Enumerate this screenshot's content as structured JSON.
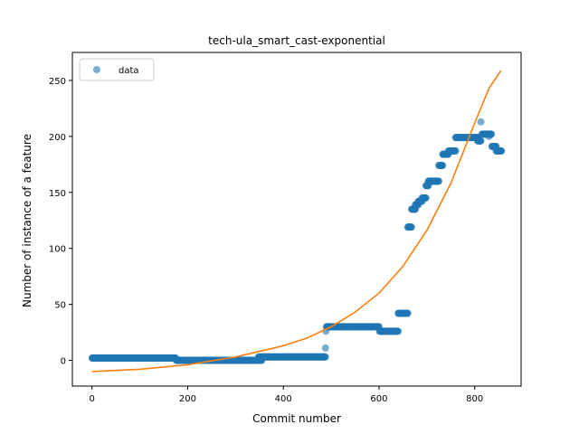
{
  "chart_data": {
    "type": "scatter",
    "title": "tech-ula_smart_cast-exponential",
    "xlabel": "Commit number",
    "ylabel": "Number of instance of a feature",
    "xlim": [
      -41,
      897
    ],
    "ylim": [
      -23,
      275
    ],
    "xticks": [
      0,
      200,
      400,
      600,
      800
    ],
    "yticks": [
      0,
      50,
      100,
      150,
      200,
      250
    ],
    "grid": false,
    "legend": {
      "placement": "top-left",
      "entries": [
        "data"
      ]
    },
    "colors": {
      "data": "#1f77b4",
      "fit": "#ff7f0e"
    },
    "series": [
      {
        "name": "data",
        "kind": "scatter",
        "segments": [
          {
            "x_start": 0,
            "x_end": 175,
            "y": 2
          },
          {
            "x_start": 176,
            "x_end": 355,
            "y": 0
          },
          {
            "x_start": 348,
            "x_end": 488,
            "y": 3
          },
          {
            "x_start": 490,
            "x_end": 600,
            "y": 30
          },
          {
            "x_start": 601,
            "x_end": 640,
            "y": 26
          },
          {
            "x_start": 640,
            "x_end": 660,
            "y": 42
          },
          {
            "x_start": 660,
            "x_end": 668,
            "y": 119
          },
          {
            "x_start": 668,
            "x_end": 676,
            "y": 135
          },
          {
            "x_start": 676,
            "x_end": 682,
            "y": 139
          },
          {
            "x_start": 682,
            "x_end": 690,
            "y": 142
          },
          {
            "x_start": 690,
            "x_end": 698,
            "y": 145
          },
          {
            "x_start": 698,
            "x_end": 703,
            "y": 156
          },
          {
            "x_start": 703,
            "x_end": 725,
            "y": 160
          },
          {
            "x_start": 725,
            "x_end": 733,
            "y": 174
          },
          {
            "x_start": 733,
            "x_end": 745,
            "y": 184
          },
          {
            "x_start": 745,
            "x_end": 760,
            "y": 187
          },
          {
            "x_start": 760,
            "x_end": 806,
            "y": 199
          },
          {
            "x_start": 806,
            "x_end": 813,
            "y": 196
          },
          {
            "x_start": 815,
            "x_end": 835,
            "y": 202
          },
          {
            "x_start": 836,
            "x_end": 845,
            "y": 191
          },
          {
            "x_start": 845,
            "x_end": 856,
            "y": 187
          }
        ],
        "points": [
          {
            "x": 488,
            "y": 11
          },
          {
            "x": 489,
            "y": 26
          },
          {
            "x": 813,
            "y": 213
          },
          {
            "x": 830,
            "y": 200
          },
          {
            "x": 805,
            "y": 199
          }
        ]
      },
      {
        "name": "",
        "kind": "line",
        "x": [
          0,
          100,
          200,
          300,
          400,
          450,
          500,
          550,
          600,
          650,
          700,
          750,
          800,
          830,
          855
        ],
        "y": [
          -10,
          -8,
          -4,
          3,
          13,
          20,
          30,
          43,
          60,
          84,
          116,
          158,
          212,
          243,
          259
        ]
      }
    ]
  }
}
